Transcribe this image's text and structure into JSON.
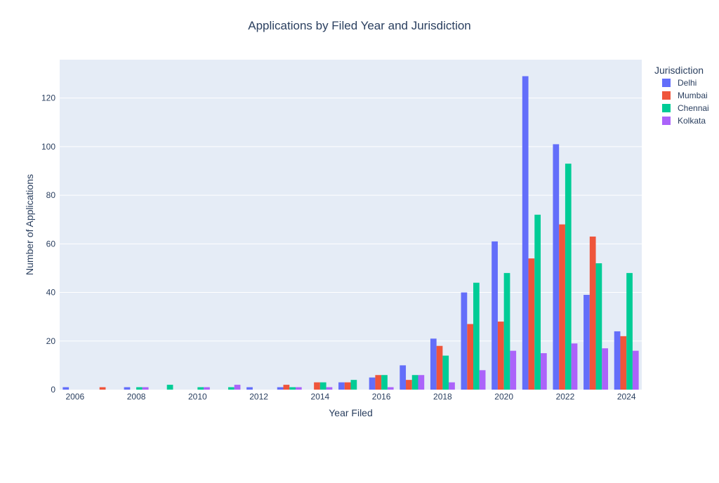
{
  "chart_data": {
    "type": "bar",
    "title": "Applications by Filed Year and Jurisdiction",
    "xlabel": "Year Filed",
    "ylabel": "Number of Applications",
    "legend_title": "Jurisdiction",
    "legend_position": "top-right, outside plot",
    "grid": true,
    "x": [
      2006,
      2007,
      2008,
      2009,
      2010,
      2011,
      2012,
      2013,
      2014,
      2015,
      2016,
      2017,
      2018,
      2019,
      2020,
      2021,
      2022,
      2023,
      2024
    ],
    "xlim": [
      2005.5,
      2024.5
    ],
    "ylim": [
      0,
      135.8
    ],
    "x_ticks": [
      2006,
      2008,
      2010,
      2012,
      2014,
      2016,
      2018,
      2020,
      2022,
      2024
    ],
    "y_ticks": [
      0,
      20,
      40,
      60,
      80,
      100,
      120
    ],
    "series": [
      {
        "name": "Delhi",
        "color": "#636efa",
        "values": [
          1,
          0,
          1,
          0,
          0,
          0,
          1,
          1,
          0,
          3,
          5,
          10,
          21,
          40,
          61,
          129,
          101,
          39,
          24
        ]
      },
      {
        "name": "Mumbai",
        "color": "#ef553b",
        "values": [
          0,
          1,
          0,
          0,
          0,
          0,
          0,
          2,
          3,
          3,
          6,
          4,
          18,
          27,
          28,
          54,
          68,
          63,
          22
        ]
      },
      {
        "name": "Chennai",
        "color": "#00cc96",
        "values": [
          0,
          0,
          1,
          2,
          1,
          1,
          0,
          1,
          3,
          4,
          6,
          6,
          14,
          44,
          48,
          72,
          93,
          52,
          48
        ]
      },
      {
        "name": "Kolkata",
        "color": "#ab63fa",
        "values": [
          0,
          0,
          1,
          0,
          1,
          2,
          0,
          1,
          1,
          0,
          1,
          6,
          3,
          8,
          16,
          15,
          19,
          17,
          16
        ]
      }
    ]
  },
  "colors": {
    "plot_bg": "#e5ecf6",
    "grid": "#ffffff",
    "text": "#2a3f5f"
  }
}
